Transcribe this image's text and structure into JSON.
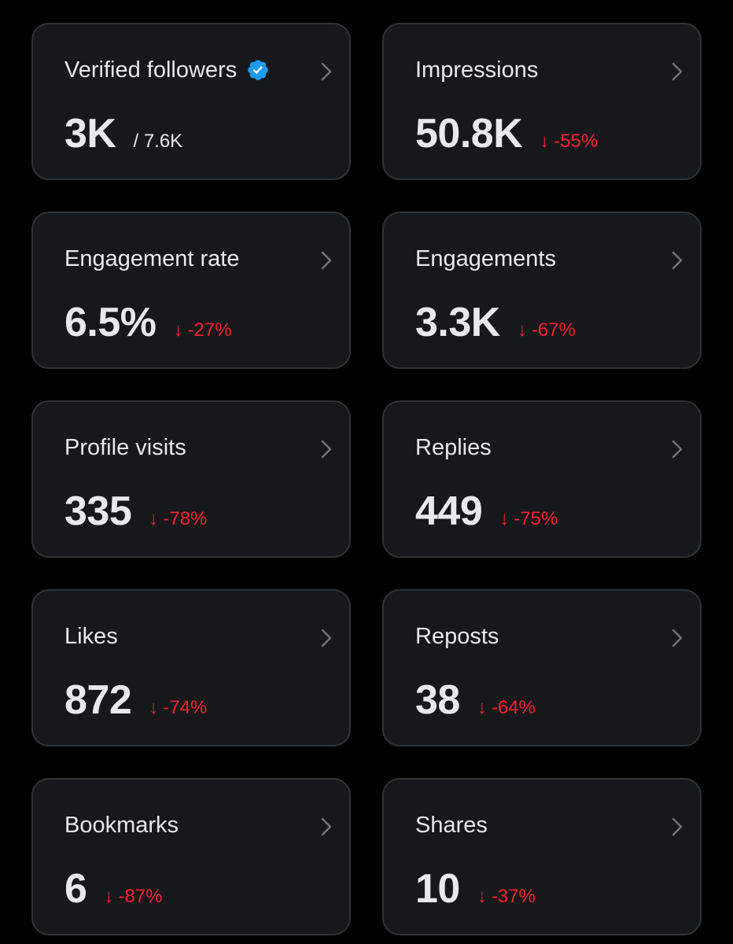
{
  "colors": {
    "background": "#000000",
    "card_background": "#16181c",
    "card_border": "#2f3336",
    "text": "#e7e9ea",
    "negative": "#f4212e",
    "verified": "#1d9bf0"
  },
  "cards": [
    {
      "title": "Verified followers",
      "value": "3K",
      "total": "/ 7.6K",
      "verified_icon": "verified-badge-icon"
    },
    {
      "title": "Impressions",
      "value": "50.8K",
      "change": "-55%"
    },
    {
      "title": "Engagement rate",
      "value": "6.5%",
      "change": "-27%"
    },
    {
      "title": "Engagements",
      "value": "3.3K",
      "change": "-67%"
    },
    {
      "title": "Profile visits",
      "value": "335",
      "change": "-78%"
    },
    {
      "title": "Replies",
      "value": "449",
      "change": "-75%"
    },
    {
      "title": "Likes",
      "value": "872",
      "change": "-74%"
    },
    {
      "title": "Reposts",
      "value": "38",
      "change": "-64%"
    },
    {
      "title": "Bookmarks",
      "value": "6",
      "change": "-87%"
    },
    {
      "title": "Shares",
      "value": "10",
      "change": "-37%"
    }
  ],
  "icons": {
    "arrow": "↓",
    "chevron": "chevron-right-icon"
  }
}
